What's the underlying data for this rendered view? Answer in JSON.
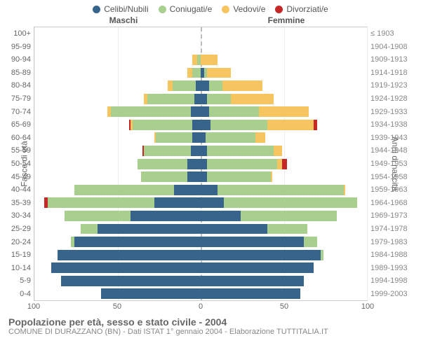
{
  "legend": [
    {
      "label": "Celibi/Nubili",
      "color": "#36648b"
    },
    {
      "label": "Coniugati/e",
      "color": "#a9cf8f"
    },
    {
      "label": "Vedovi/e",
      "color": "#f7c55f"
    },
    {
      "label": "Divorziati/e",
      "color": "#c62828"
    }
  ],
  "col_headers": {
    "left": "Maschi",
    "right": "Femmine"
  },
  "axis_titles": {
    "left": "Fasce di età",
    "right": "Anni di nascita"
  },
  "pyramid": {
    "max": 100,
    "xticks": [
      100,
      50,
      0,
      50,
      100
    ],
    "age_labels": [
      "100+",
      "95-99",
      "90-94",
      "85-89",
      "80-84",
      "75-79",
      "70-74",
      "65-69",
      "60-64",
      "55-59",
      "50-54",
      "45-49",
      "40-44",
      "35-39",
      "30-34",
      "25-29",
      "20-24",
      "15-19",
      "10-14",
      "5-9",
      "0-4"
    ],
    "birth_labels": [
      "≤ 1903",
      "1904-1908",
      "1909-1913",
      "1914-1918",
      "1919-1923",
      "1924-1928",
      "1929-1933",
      "1934-1938",
      "1939-1943",
      "1944-1948",
      "1949-1953",
      "1954-1958",
      "1959-1963",
      "1964-1968",
      "1969-1973",
      "1974-1978",
      "1979-1983",
      "1984-1988",
      "1989-1993",
      "1994-1998",
      "1999-2003"
    ],
    "rows": [
      {
        "m": {
          "single": 0,
          "married": 0,
          "widowed": 0,
          "divorced": 0
        },
        "f": {
          "single": 0,
          "married": 0,
          "widowed": 0,
          "divorced": 0
        }
      },
      {
        "m": {
          "single": 0,
          "married": 0,
          "widowed": 0,
          "divorced": 0
        },
        "f": {
          "single": 0,
          "married": 0,
          "widowed": 0,
          "divorced": 0
        }
      },
      {
        "m": {
          "single": 0,
          "married": 2,
          "widowed": 3,
          "divorced": 0
        },
        "f": {
          "single": 0,
          "married": 0,
          "widowed": 10,
          "divorced": 0
        }
      },
      {
        "m": {
          "single": 0,
          "married": 5,
          "widowed": 3,
          "divorced": 0
        },
        "f": {
          "single": 2,
          "married": 2,
          "widowed": 14,
          "divorced": 0
        }
      },
      {
        "m": {
          "single": 3,
          "married": 14,
          "widowed": 3,
          "divorced": 0
        },
        "f": {
          "single": 5,
          "married": 8,
          "widowed": 24,
          "divorced": 0
        }
      },
      {
        "m": {
          "single": 4,
          "married": 28,
          "widowed": 2,
          "divorced": 0
        },
        "f": {
          "single": 4,
          "married": 14,
          "widowed": 26,
          "divorced": 0
        }
      },
      {
        "m": {
          "single": 6,
          "married": 48,
          "widowed": 2,
          "divorced": 0
        },
        "f": {
          "single": 5,
          "married": 30,
          "widowed": 30,
          "divorced": 0
        }
      },
      {
        "m": {
          "single": 5,
          "married": 36,
          "widowed": 1,
          "divorced": 1
        },
        "f": {
          "single": 6,
          "married": 34,
          "widowed": 28,
          "divorced": 2
        }
      },
      {
        "m": {
          "single": 5,
          "married": 22,
          "widowed": 1,
          "divorced": 0
        },
        "f": {
          "single": 3,
          "married": 30,
          "widowed": 6,
          "divorced": 0
        }
      },
      {
        "m": {
          "single": 6,
          "married": 28,
          "widowed": 0,
          "divorced": 1
        },
        "f": {
          "single": 4,
          "married": 40,
          "widowed": 5,
          "divorced": 0
        }
      },
      {
        "m": {
          "single": 8,
          "married": 30,
          "widowed": 0,
          "divorced": 0
        },
        "f": {
          "single": 4,
          "married": 42,
          "widowed": 3,
          "divorced": 3
        }
      },
      {
        "m": {
          "single": 8,
          "married": 28,
          "widowed": 0,
          "divorced": 0
        },
        "f": {
          "single": 4,
          "married": 38,
          "widowed": 1,
          "divorced": 0
        }
      },
      {
        "m": {
          "single": 16,
          "married": 60,
          "widowed": 0,
          "divorced": 0
        },
        "f": {
          "single": 10,
          "married": 76,
          "widowed": 1,
          "divorced": 0
        }
      },
      {
        "m": {
          "single": 28,
          "married": 64,
          "widowed": 0,
          "divorced": 2
        },
        "f": {
          "single": 14,
          "married": 80,
          "widowed": 0,
          "divorced": 0
        }
      },
      {
        "m": {
          "single": 42,
          "married": 40,
          "widowed": 0,
          "divorced": 0
        },
        "f": {
          "single": 24,
          "married": 58,
          "widowed": 0,
          "divorced": 0
        }
      },
      {
        "m": {
          "single": 62,
          "married": 10,
          "widowed": 0,
          "divorced": 0
        },
        "f": {
          "single": 40,
          "married": 24,
          "widowed": 0,
          "divorced": 0
        }
      },
      {
        "m": {
          "single": 76,
          "married": 2,
          "widowed": 0,
          "divorced": 0
        },
        "f": {
          "single": 62,
          "married": 8,
          "widowed": 0,
          "divorced": 0
        }
      },
      {
        "m": {
          "single": 86,
          "married": 0,
          "widowed": 0,
          "divorced": 0
        },
        "f": {
          "single": 72,
          "married": 2,
          "widowed": 0,
          "divorced": 0
        }
      },
      {
        "m": {
          "single": 90,
          "married": 0,
          "widowed": 0,
          "divorced": 0
        },
        "f": {
          "single": 68,
          "married": 0,
          "widowed": 0,
          "divorced": 0
        }
      },
      {
        "m": {
          "single": 84,
          "married": 0,
          "widowed": 0,
          "divorced": 0
        },
        "f": {
          "single": 62,
          "married": 0,
          "widowed": 0,
          "divorced": 0
        }
      },
      {
        "m": {
          "single": 60,
          "married": 0,
          "widowed": 0,
          "divorced": 0
        },
        "f": {
          "single": 60,
          "married": 0,
          "widowed": 0,
          "divorced": 0
        }
      }
    ]
  },
  "colors": {
    "single": "#36648b",
    "married": "#a9cf8f",
    "widowed": "#f7c55f",
    "divorced": "#c62828",
    "grid": "#eeeeee",
    "centerline": "#bbbbbb"
  },
  "footer": {
    "title": "Popolazione per età, sesso e stato civile - 2004",
    "subtitle": "COMUNE DI DURAZZANO (BN) - Dati ISTAT 1° gennaio 2004 - Elaborazione TUTTITALIA.IT"
  }
}
